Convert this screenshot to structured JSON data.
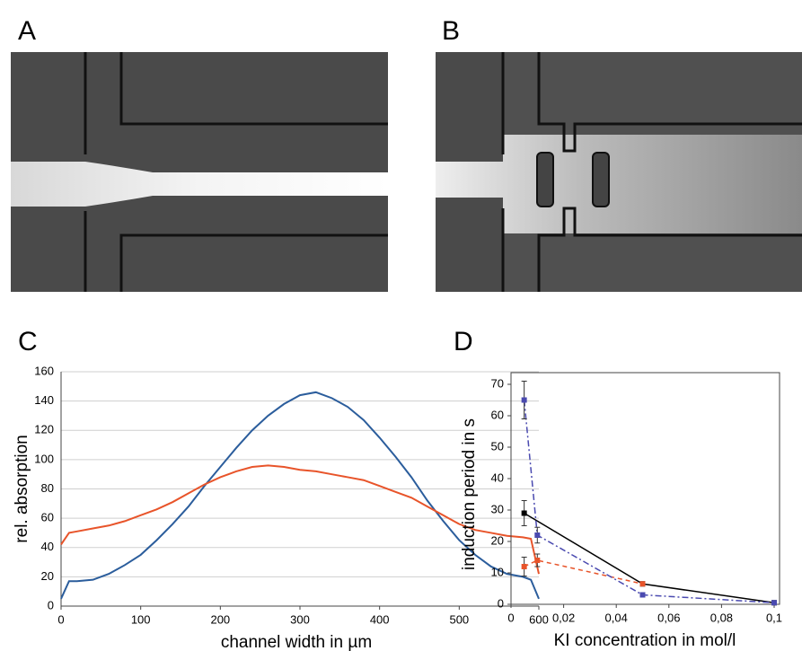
{
  "image_panels": [
    "A",
    "B"
  ],
  "chart_data": [
    {
      "type": "line",
      "panel": "C",
      "xlabel": "channel width in µm",
      "ylabel": "rel. absorption",
      "xlim": [
        0,
        600
      ],
      "ylim": [
        0,
        160
      ],
      "xticks": [
        0,
        100,
        200,
        300,
        400,
        500,
        600
      ],
      "yticks": [
        0,
        20,
        40,
        60,
        80,
        100,
        120,
        140,
        160
      ],
      "grid": true,
      "frame": false,
      "series": [
        {
          "color": "#2b5d9c",
          "style": "solid",
          "x": [
            0,
            10,
            20,
            40,
            60,
            80,
            100,
            120,
            140,
            160,
            180,
            200,
            220,
            240,
            260,
            280,
            300,
            320,
            340,
            360,
            380,
            400,
            420,
            440,
            460,
            480,
            500,
            520,
            540,
            560,
            580,
            590,
            600
          ],
          "values": [
            5,
            17,
            17,
            18,
            22,
            28,
            35,
            45,
            56,
            68,
            82,
            95,
            108,
            120,
            130,
            138,
            144,
            146,
            142,
            136,
            127,
            115,
            102,
            88,
            72,
            58,
            45,
            35,
            27,
            22,
            20,
            18,
            5
          ]
        },
        {
          "color": "#e8542a",
          "style": "solid",
          "x": [
            0,
            10,
            20,
            40,
            60,
            80,
            100,
            120,
            140,
            160,
            180,
            200,
            220,
            240,
            260,
            280,
            300,
            320,
            340,
            360,
            380,
            400,
            420,
            440,
            460,
            480,
            500,
            520,
            540,
            560,
            580,
            590,
            600
          ],
          "values": [
            42,
            50,
            51,
            53,
            55,
            58,
            62,
            66,
            71,
            77,
            83,
            88,
            92,
            95,
            96,
            95,
            93,
            92,
            90,
            88,
            86,
            82,
            78,
            74,
            68,
            62,
            56,
            52,
            50,
            48,
            47,
            46,
            22
          ]
        }
      ]
    },
    {
      "type": "line",
      "panel": "D",
      "xlabel": "KI concentration in mol/l",
      "ylabel": "induction period in s",
      "xlim": [
        0,
        0.1
      ],
      "ylim": [
        0,
        70
      ],
      "xticks": [
        0,
        {
          "value": 0.02,
          "label": "0,02"
        },
        {
          "value": 0.04,
          "label": "0,04"
        },
        {
          "value": 0.06,
          "label": "0,06"
        },
        {
          "value": 0.08,
          "label": "0,08"
        },
        {
          "value": 0.1,
          "label": "0,1"
        }
      ],
      "yticks": [
        0,
        10,
        20,
        30,
        40,
        50,
        60,
        70
      ],
      "grid": false,
      "frame": true,
      "series": [
        {
          "color": "#000000",
          "style": "solid",
          "x": [
            0.005,
            0.05,
            0.1
          ],
          "values": [
            29,
            6.5,
            0.5
          ],
          "errors": [
            4,
            0.5,
            0.3
          ]
        },
        {
          "color": "#e8542a",
          "style": "dashed",
          "x": [
            0.005,
            0.01,
            0.05
          ],
          "values": [
            12,
            14,
            6.5
          ],
          "errors": [
            3,
            2,
            0.5
          ]
        },
        {
          "color": "#4a4ab0",
          "style": "dash-dot",
          "x": [
            0.005,
            0.01,
            0.05,
            0.1
          ],
          "values": [
            65,
            22,
            3,
            0.5
          ],
          "errors": [
            6,
            2.5,
            0.5,
            0.3
          ]
        }
      ]
    }
  ]
}
